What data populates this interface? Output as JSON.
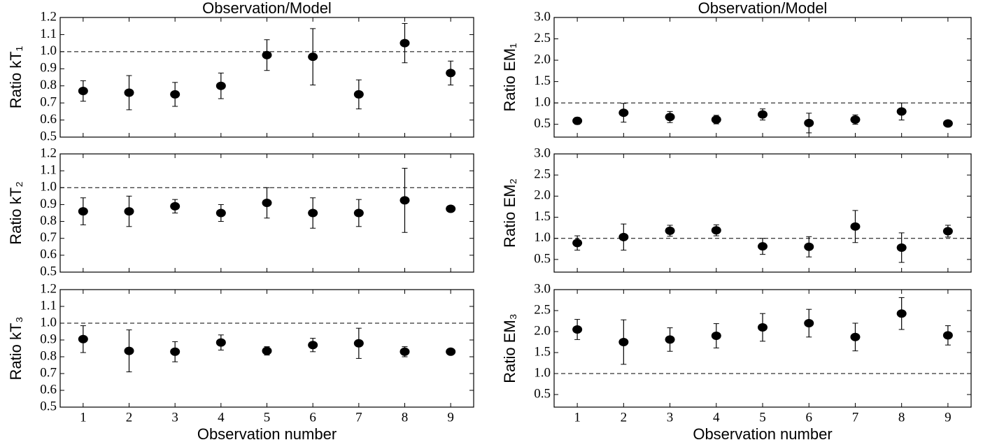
{
  "chart_data": [
    {
      "type": "errorbar",
      "title": "Observation/Model",
      "ylabel": "Ratio kT₁",
      "color": "#000000",
      "x": [
        1,
        2,
        3,
        4,
        5,
        6,
        7,
        8,
        9
      ],
      "values": [
        0.77,
        0.76,
        0.75,
        0.8,
        0.98,
        0.97,
        0.75,
        1.05,
        0.875
      ],
      "errors": [
        0.06,
        0.1,
        0.07,
        0.075,
        0.09,
        0.165,
        0.085,
        0.115,
        0.07
      ],
      "hline": 1,
      "xlim": [
        0.5,
        9.5
      ],
      "xticks": [
        1,
        2,
        3,
        4,
        5,
        6,
        7,
        8,
        9
      ],
      "ylim": [
        0.5,
        1.2
      ],
      "yticks": [
        0.5,
        0.6,
        0.7,
        0.8,
        0.9,
        {
          "value": 1,
          "label": "1.0"
        },
        1.1,
        1.2
      ],
      "grid": false
    },
    {
      "type": "errorbar",
      "title": "Observation/Model",
      "ylabel": "Ratio EM₁",
      "color": "#000000",
      "x": [
        1,
        2,
        3,
        4,
        5,
        6,
        7,
        8,
        9
      ],
      "values": [
        0.58,
        0.77,
        0.67,
        0.61,
        0.73,
        0.53,
        0.61,
        0.8,
        0.52
      ],
      "errors": [
        0.08,
        0.22,
        0.13,
        0.1,
        0.13,
        0.23,
        0.11,
        0.2,
        0.05
      ],
      "hline": 1,
      "xlim": [
        0.5,
        9.5
      ],
      "xticks": [
        1,
        2,
        3,
        4,
        5,
        6,
        7,
        8,
        9
      ],
      "ylim": [
        0.2,
        3.0
      ],
      "yticks": [
        0.5,
        {
          "value": 1,
          "label": "1.0"
        },
        1.5,
        {
          "value": 2,
          "label": "2.0"
        },
        2.5,
        {
          "value": 3,
          "label": "3.0"
        }
      ],
      "grid": false
    },
    {
      "type": "errorbar",
      "ylabel": "Ratio kT₂",
      "color": "#000000",
      "x": [
        1,
        2,
        3,
        4,
        5,
        6,
        7,
        8,
        9
      ],
      "values": [
        0.86,
        0.86,
        0.89,
        0.85,
        0.91,
        0.85,
        0.85,
        0.925,
        0.875
      ],
      "errors": [
        0.08,
        0.09,
        0.04,
        0.05,
        0.09,
        0.09,
        0.08,
        0.19,
        0.01
      ],
      "hline": 1,
      "xlim": [
        0.5,
        9.5
      ],
      "xticks": [
        1,
        2,
        3,
        4,
        5,
        6,
        7,
        8,
        9
      ],
      "ylim": [
        0.5,
        1.2
      ],
      "yticks": [
        0.5,
        0.6,
        0.7,
        0.8,
        0.9,
        {
          "value": 1,
          "label": "1.0"
        },
        1.1,
        1.2
      ],
      "grid": false
    },
    {
      "type": "errorbar",
      "ylabel": "Ratio EM₂",
      "color": "#000000",
      "x": [
        1,
        2,
        3,
        4,
        5,
        6,
        7,
        8,
        9
      ],
      "values": [
        0.89,
        1.03,
        1.18,
        1.19,
        0.81,
        0.8,
        1.28,
        0.78,
        1.17
      ],
      "errors": [
        0.17,
        0.31,
        0.13,
        0.13,
        0.19,
        0.24,
        0.38,
        0.35,
        0.14
      ],
      "hline": 1,
      "xlim": [
        0.5,
        9.5
      ],
      "xticks": [
        1,
        2,
        3,
        4,
        5,
        6,
        7,
        8,
        9
      ],
      "ylim": [
        0.2,
        3.0
      ],
      "yticks": [
        0.5,
        {
          "value": 1,
          "label": "1.0"
        },
        1.5,
        {
          "value": 2,
          "label": "2.0"
        },
        2.5,
        {
          "value": 3,
          "label": "3.0"
        }
      ],
      "grid": false
    },
    {
      "type": "errorbar",
      "ylabel": "Ratio kT₃",
      "xlabel": "Observation number",
      "color": "#000000",
      "x": [
        1,
        2,
        3,
        4,
        5,
        6,
        7,
        8,
        9
      ],
      "values": [
        0.905,
        0.835,
        0.83,
        0.885,
        0.835,
        0.87,
        0.88,
        0.83,
        0.83
      ],
      "errors": [
        0.08,
        0.125,
        0.06,
        0.045,
        0.025,
        0.04,
        0.09,
        0.03,
        0.01
      ],
      "hline": 1,
      "xlim": [
        0.5,
        9.5
      ],
      "xticks": [
        1,
        2,
        3,
        4,
        5,
        6,
        7,
        8,
        9
      ],
      "ylim": [
        0.5,
        1.2
      ],
      "yticks": [
        0.5,
        0.6,
        0.7,
        0.8,
        0.9,
        {
          "value": 1,
          "label": "1.0"
        },
        1.1,
        1.2
      ],
      "grid": false
    },
    {
      "type": "errorbar",
      "ylabel": "Ratio EM₃",
      "xlabel": "Observation number",
      "color": "#000000",
      "x": [
        1,
        2,
        3,
        4,
        5,
        6,
        7,
        8,
        9
      ],
      "values": [
        2.05,
        1.75,
        1.81,
        1.9,
        2.1,
        2.2,
        1.87,
        2.43,
        1.91
      ],
      "errors": [
        0.24,
        0.53,
        0.28,
        0.29,
        0.33,
        0.33,
        0.33,
        0.38,
        0.23
      ],
      "hline": 1,
      "xlim": [
        0.5,
        9.5
      ],
      "xticks": [
        1,
        2,
        3,
        4,
        5,
        6,
        7,
        8,
        9
      ],
      "ylim": [
        0.2,
        3.0
      ],
      "yticks": [
        0.5,
        {
          "value": 1,
          "label": "1.0"
        },
        1.5,
        {
          "value": 2,
          "label": "2.0"
        },
        2.5,
        {
          "value": 3,
          "label": "3.0"
        }
      ],
      "grid": false
    }
  ]
}
